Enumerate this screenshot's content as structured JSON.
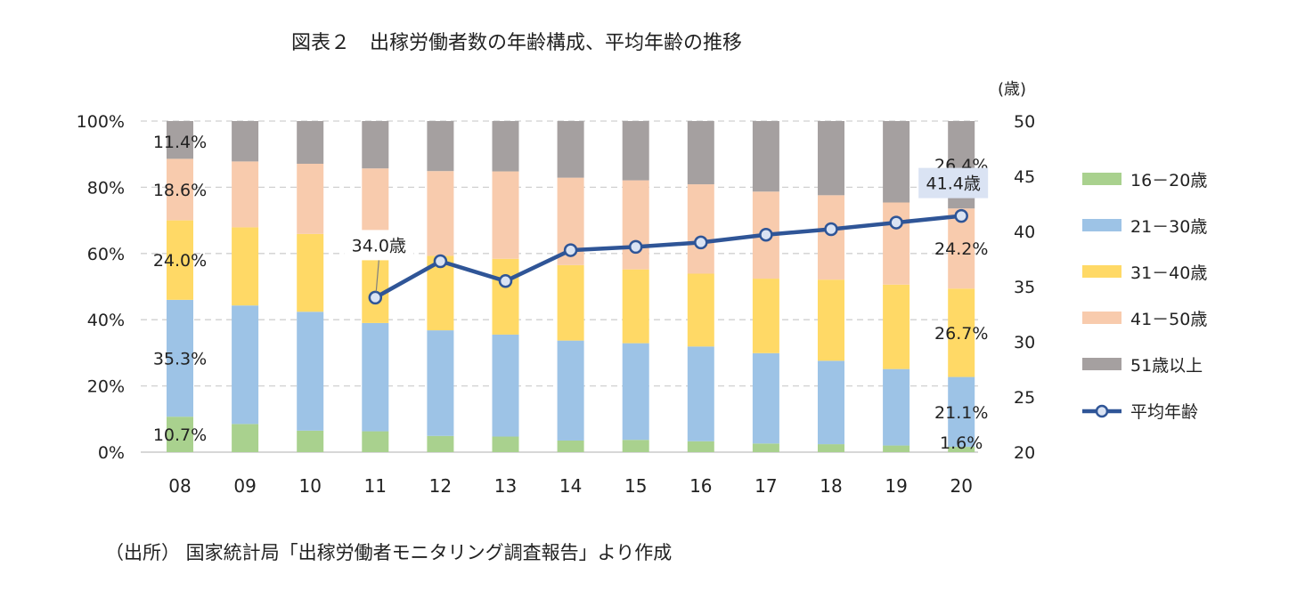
{
  "title": "図表２　出稼労働者数の年齢構成、平均年齢の推移",
  "source": "（出所） 国家統計局「出稼労働者モニタリング調査報告」より作成",
  "chart_data": {
    "type": "bar",
    "stacked": true,
    "categories": [
      "08",
      "09",
      "10",
      "11",
      "12",
      "13",
      "14",
      "15",
      "16",
      "17",
      "18",
      "19",
      "20"
    ],
    "series": [
      {
        "name": "16－20歳",
        "color": "#a9d18e",
        "values": [
          10.7,
          8.5,
          6.5,
          6.3,
          4.9,
          4.7,
          3.5,
          3.7,
          3.3,
          2.6,
          2.4,
          2.0,
          1.6
        ]
      },
      {
        "name": "21－30歳",
        "color": "#9dc3e6",
        "values": [
          35.3,
          35.8,
          35.9,
          32.7,
          31.9,
          30.8,
          30.2,
          29.2,
          28.6,
          27.3,
          25.2,
          23.1,
          21.1
        ]
      },
      {
        "name": "31－40歳",
        "color": "#ffd966",
        "values": [
          24.0,
          23.6,
          23.5,
          22.7,
          22.5,
          22.9,
          22.8,
          22.3,
          22.0,
          22.5,
          24.5,
          25.5,
          26.7
        ]
      },
      {
        "name": "41－50歳",
        "color": "#f8cbad",
        "values": [
          18.6,
          19.9,
          21.2,
          24.0,
          25.6,
          26.4,
          26.4,
          26.9,
          27.0,
          26.3,
          25.5,
          24.8,
          24.2
        ]
      },
      {
        "name": "51歳以上",
        "color": "#a5a0a0",
        "values": [
          11.4,
          12.2,
          12.9,
          14.3,
          15.1,
          15.2,
          17.1,
          17.9,
          19.1,
          21.3,
          22.4,
          24.6,
          26.4
        ]
      }
    ],
    "line": {
      "name": "平均年齢",
      "color": "#2f5597",
      "start_index": 3,
      "values": [
        34.0,
        37.3,
        35.5,
        38.3,
        38.6,
        39.0,
        39.7,
        40.2,
        40.8,
        41.4
      ]
    },
    "left_axis": {
      "min": 0,
      "max": 100,
      "ticks": [
        "0%",
        "20%",
        "40%",
        "60%",
        "80%",
        "100%"
      ]
    },
    "right_axis": {
      "unit": "(歳)",
      "min": 20,
      "max": 50,
      "ticks": [
        "20",
        "25",
        "30",
        "35",
        "40",
        "45",
        "50"
      ]
    },
    "data_labels": [
      {
        "text": "11.4%",
        "series": 4,
        "category": 0
      },
      {
        "text": "18.6%",
        "series": 3,
        "category": 0
      },
      {
        "text": "24.0%",
        "series": 2,
        "category": 0
      },
      {
        "text": "35.3%",
        "series": 1,
        "category": 0
      },
      {
        "text": "10.7%",
        "series": 0,
        "category": 0
      },
      {
        "text": "26.4%",
        "series": 4,
        "category": 12
      },
      {
        "text": "24.2%",
        "series": 3,
        "category": 12
      },
      {
        "text": "26.7%",
        "series": 2,
        "category": 12
      },
      {
        "text": "21.1%",
        "series": 1,
        "category": 12
      },
      {
        "text": "1.6%",
        "series": 0,
        "category": 12
      }
    ],
    "line_callouts": [
      {
        "text": "34.0歳",
        "category": 3
      },
      {
        "text": "41.4歳",
        "category": 12
      }
    ],
    "grid": true,
    "legend": "right"
  }
}
